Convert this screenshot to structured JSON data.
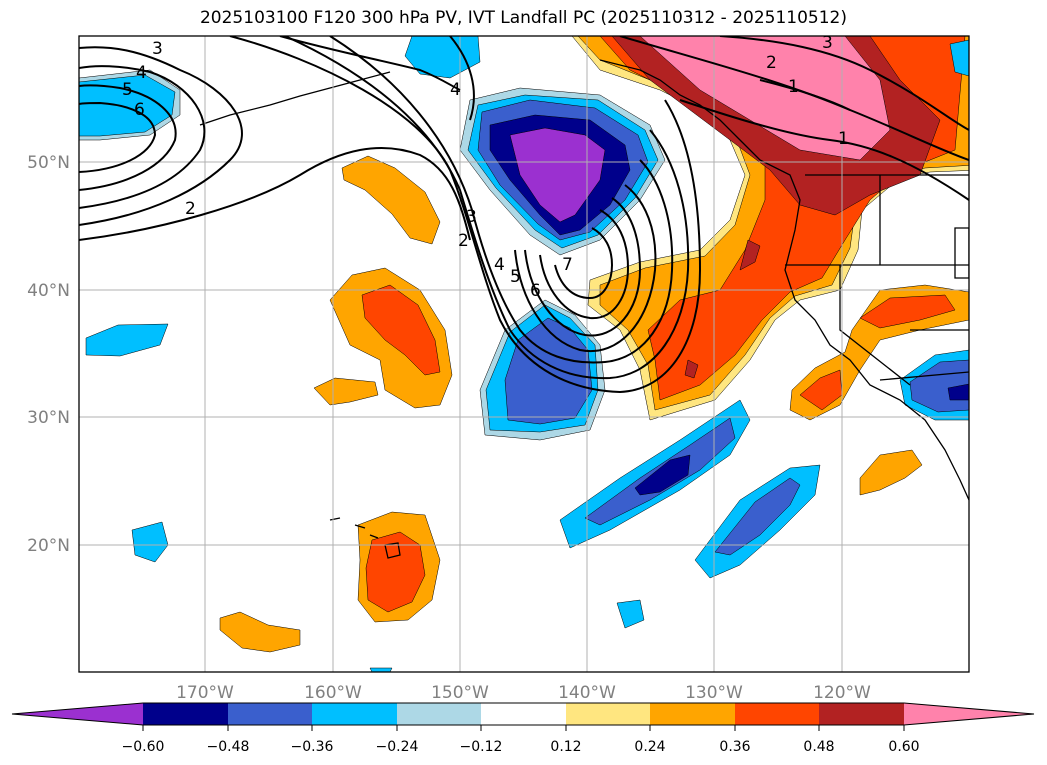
{
  "title": "2025103100 F120 300 hPa PV, IVT Landfall PC (2025110312 - 2025110512)",
  "colors": {
    "neg_060": "#9b30d0",
    "neg_048": "#00008b",
    "neg_036": "#3a5fcd",
    "neg_024": "#00bfff",
    "neg_012": "#add8e6",
    "pos_012": "#ffe680",
    "pos_024": "#ffa500",
    "pos_036": "#ff4500",
    "pos_048": "#b22222",
    "pos_060": "#ff82ab",
    "grid": "#b0b0b0"
  },
  "axes": {
    "lon_labels": [
      "170°W",
      "160°W",
      "150°W",
      "140°W",
      "130°W",
      "120°W"
    ],
    "lat_labels": [
      "50°N",
      "40°N",
      "30°N",
      "20°N"
    ]
  },
  "colorbar": {
    "tick_labels": [
      "−0.60",
      "−0.48",
      "−0.36",
      "−0.24",
      "−0.12",
      "0.12",
      "0.24",
      "0.36",
      "0.48",
      "0.60"
    ]
  },
  "contour_labels": {
    "west_3": "3",
    "west_4": "4",
    "west_5": "5",
    "west_6": "6",
    "west_2": "2",
    "north_4": "4",
    "trough_3": "3",
    "trough_2": "2",
    "trough_4": "4",
    "trough_5": "5",
    "trough_6": "6",
    "trough_7": "7",
    "ne_2": "2",
    "ne_3": "3",
    "ne_1a": "1",
    "ne_1b": "1"
  }
}
